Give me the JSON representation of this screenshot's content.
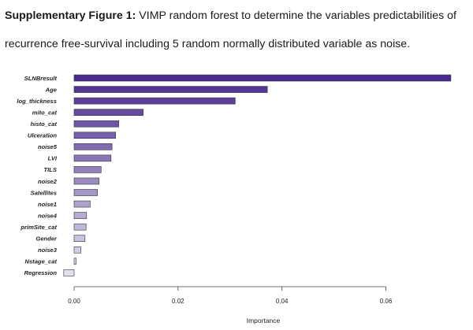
{
  "caption": {
    "lead": "Supplementary Figure 1:",
    "text": " VIMP random forest to determine the variables predictabilities of recurrence free-survival including 5 random normally distributed variable as noise."
  },
  "chart_data": {
    "type": "bar",
    "orientation": "horizontal",
    "title": "",
    "xlabel": "Importance",
    "ylabel": "",
    "xlim": [
      -0.0025,
      0.073
    ],
    "xticks": [
      0.0,
      0.02,
      0.04,
      0.06
    ],
    "xtick_labels": [
      "0.00",
      "0.02",
      "0.04",
      "0.06"
    ],
    "grid": false,
    "legend": "none",
    "categories": [
      "SLNBresult",
      "Age",
      "log_thickness",
      "mito_cat",
      "histo_cat",
      "Ulceration",
      "noise5",
      "LVI",
      "TILS",
      "noise2",
      "Satellites",
      "noise1",
      "noise4",
      "primSite_cat",
      "Gender",
      "noise3",
      "Nstage_cat",
      "Regression"
    ],
    "values": [
      0.0725,
      0.0372,
      0.031,
      0.0133,
      0.0086,
      0.008,
      0.0073,
      0.0071,
      0.0052,
      0.0048,
      0.0045,
      0.0031,
      0.0024,
      0.0023,
      0.0021,
      0.0013,
      0.0004,
      -0.002
    ],
    "colors": {
      "top": "#4b2b8f",
      "bottom": "#e4e1f0",
      "border": "#333333"
    }
  }
}
